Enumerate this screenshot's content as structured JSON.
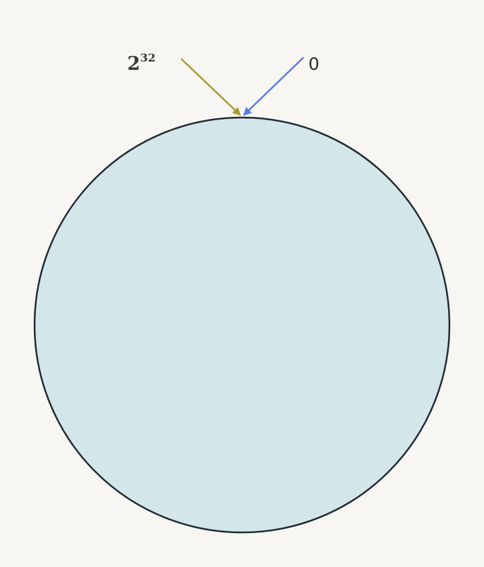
{
  "ring": {
    "fill": "#d3e7eb",
    "stroke": "#222a33"
  },
  "labels": {
    "max_base": "2",
    "max_exponent": "32",
    "zero": "0"
  },
  "arrows": {
    "max_color": "#a89a30",
    "zero_color": "#5b79e6"
  }
}
